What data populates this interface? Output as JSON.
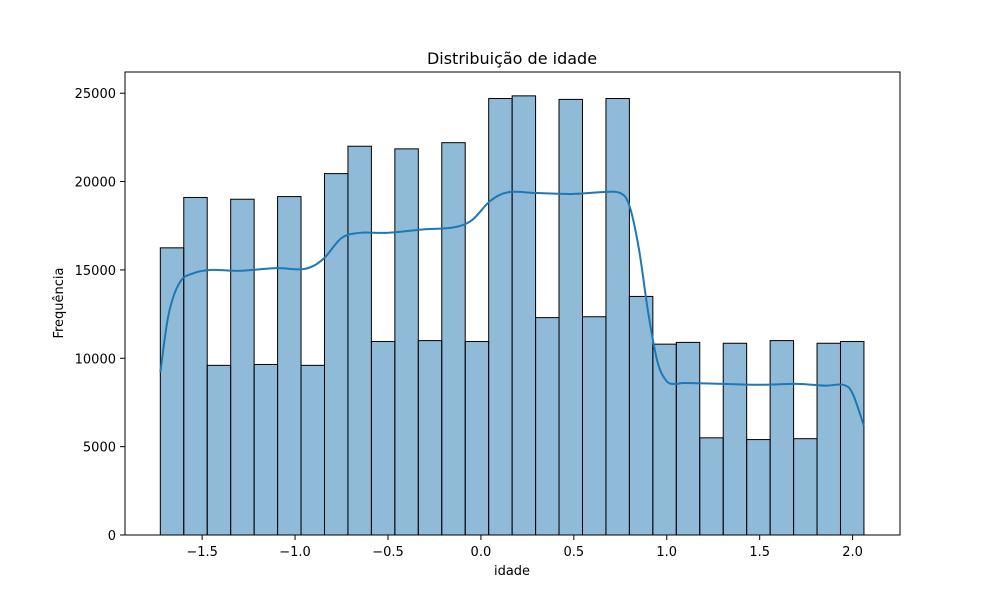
{
  "chart_data": {
    "type": "bar",
    "subtype": "histogram-with-kde",
    "title": "Distribuição de idade",
    "xlabel": "idade",
    "ylabel": "Frequência",
    "xlim": [
      -1.915,
      2.255
    ],
    "ylim": [
      0,
      26200
    ],
    "grid": false,
    "legend": "none",
    "bar_color": "#1f77b4",
    "bar_alpha": 0.5,
    "bar_edge_color": "#000000",
    "kde_color": "#1f77b4",
    "bins": {
      "start": -1.725,
      "width": 0.1262,
      "counts": [
        16250,
        19100,
        9600,
        19000,
        9650,
        19150,
        9600,
        20450,
        22000,
        10950,
        21850,
        11000,
        22200,
        10950,
        24700,
        24850,
        12300,
        24650,
        12350,
        24700,
        13500,
        10800,
        10900,
        5500,
        10850,
        5400,
        11000,
        5450,
        10850,
        10950
      ]
    },
    "kde": {
      "x": [
        -1.725,
        -1.68,
        -1.62,
        -1.55,
        -1.45,
        -1.3,
        -1.1,
        -0.95,
        -0.85,
        -0.75,
        -0.65,
        -0.5,
        -0.3,
        -0.15,
        -0.05,
        0.05,
        0.15,
        0.3,
        0.5,
        0.65,
        0.75,
        0.8,
        0.85,
        0.9,
        0.95,
        1.0,
        1.05,
        1.1,
        1.3,
        1.5,
        1.7,
        1.85,
        1.95,
        2.0,
        2.06
      ],
      "y": [
        9200,
        12500,
        14300,
        14800,
        15000,
        14950,
        15100,
        15050,
        15600,
        16800,
        17100,
        17100,
        17300,
        17400,
        17800,
        18900,
        19400,
        19350,
        19300,
        19400,
        19350,
        18600,
        16200,
        12600,
        9800,
        8700,
        8550,
        8600,
        8550,
        8500,
        8550,
        8450,
        8500,
        8000,
        6200
      ]
    },
    "xticks": [
      -1.5,
      -1.0,
      -0.5,
      0.0,
      0.5,
      1.0,
      1.5,
      2.0
    ],
    "xtick_labels": [
      "−1.5",
      "−1.0",
      "−0.5",
      "0.0",
      "0.5",
      "1.0",
      "1.5",
      "2.0"
    ],
    "yticks": [
      0,
      5000,
      10000,
      15000,
      20000,
      25000
    ],
    "ytick_labels": [
      "0",
      "5000",
      "10000",
      "15000",
      "20000",
      "25000"
    ]
  }
}
